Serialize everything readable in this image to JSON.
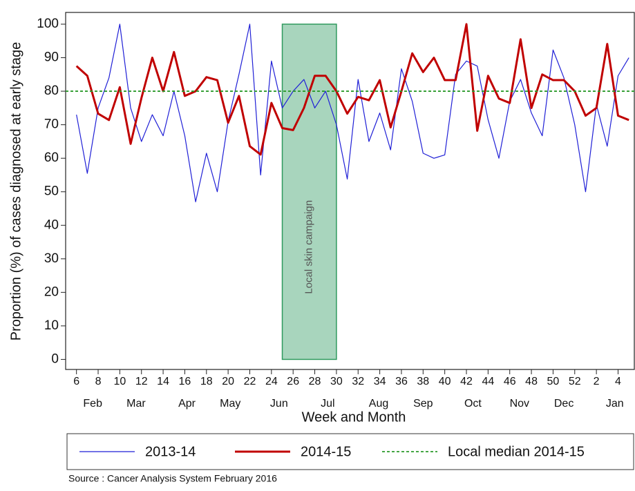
{
  "chart_data": {
    "type": "line",
    "y_label": "Proportion (%) of cases diagnosed at early stage",
    "x_label": "Week and Month",
    "source": "Source : Cancer Analysis System February 2016",
    "x": [
      6,
      7,
      8,
      9,
      10,
      11,
      12,
      13,
      14,
      15,
      16,
      17,
      18,
      19,
      20,
      21,
      22,
      23,
      24,
      25,
      26,
      27,
      28,
      29,
      30,
      31,
      32,
      33,
      34,
      35,
      36,
      37,
      38,
      39,
      40,
      41,
      42,
      43,
      44,
      45,
      46,
      47,
      48,
      49,
      50,
      51,
      52,
      53,
      54,
      55,
      56,
      57
    ],
    "series": [
      {
        "name": "2013-14",
        "color": "#1f1fd6",
        "width": 1.2,
        "values": [
          73,
          55.5,
          75,
          84,
          100,
          75,
          65,
          73,
          66.7,
          80,
          66.7,
          47,
          61.5,
          50,
          71,
          85,
          100,
          55,
          89,
          75,
          80,
          83.5,
          75,
          80,
          70,
          53.8,
          83.5,
          65,
          73.5,
          62.5,
          86.7,
          77,
          61.5,
          60,
          61,
          85,
          89,
          87.5,
          71.5,
          60,
          77,
          83.5,
          73.5,
          66.7,
          92.3,
          84,
          70,
          50,
          76,
          63.6,
          84.6,
          90
        ]
      },
      {
        "name": "2014-15",
        "color": "#c00000",
        "width": 3,
        "values": [
          87.5,
          84.6,
          73.3,
          71.4,
          81.2,
          64.3,
          78,
          90,
          80,
          91.7,
          78.6,
          80,
          84.2,
          83.3,
          70.6,
          78.6,
          63.6,
          61.1,
          76.5,
          69,
          68.4,
          75,
          84.6,
          84.6,
          80,
          73.3,
          78.3,
          77.3,
          83.3,
          69.2,
          80,
          91.3,
          85.7,
          90,
          83.3,
          83.3,
          100,
          68.2,
          84.6,
          77.8,
          76.5,
          95.5,
          75,
          85,
          83.3,
          83.3,
          80,
          72.7,
          75,
          94.1,
          72.7,
          71.4
        ]
      }
    ],
    "median": {
      "name": "Local median 2014-15",
      "value": 80,
      "color": "#2a9a2a"
    },
    "region": {
      "label": "Local skin campaign",
      "start": 25,
      "end": 30,
      "bottom": 0,
      "top": 100,
      "color": "#a8d5bd",
      "edge": "#2e9a5e"
    },
    "xlim": [
      5,
      57.5
    ],
    "xticks": [
      6,
      8,
      10,
      12,
      14,
      16,
      18,
      20,
      22,
      24,
      26,
      28,
      30,
      32,
      34,
      36,
      38,
      40,
      42,
      44,
      46,
      48,
      50,
      52,
      {
        "value": 54,
        "label": "2"
      },
      {
        "value": 56,
        "label": "4"
      }
    ],
    "months": [
      {
        "value": 7.5,
        "label": "Feb"
      },
      {
        "value": 11.5,
        "label": "Mar"
      },
      {
        "value": 16.2,
        "label": "Apr"
      },
      {
        "value": 20.2,
        "label": "May"
      },
      {
        "value": 24.7,
        "label": "Jun"
      },
      {
        "value": 29.2,
        "label": "Jul"
      },
      {
        "value": 33.9,
        "label": "Aug"
      },
      {
        "value": 38,
        "label": "Sep"
      },
      {
        "value": 42.6,
        "label": "Oct"
      },
      {
        "value": 46.9,
        "label": "Nov"
      },
      {
        "value": 51,
        "label": "Dec"
      },
      {
        "value": 55.7,
        "label": "Jan"
      }
    ],
    "ylim": [
      -3,
      103.5
    ],
    "yticks": [
      0,
      10,
      20,
      30,
      40,
      50,
      60,
      70,
      80,
      90,
      100
    ]
  }
}
